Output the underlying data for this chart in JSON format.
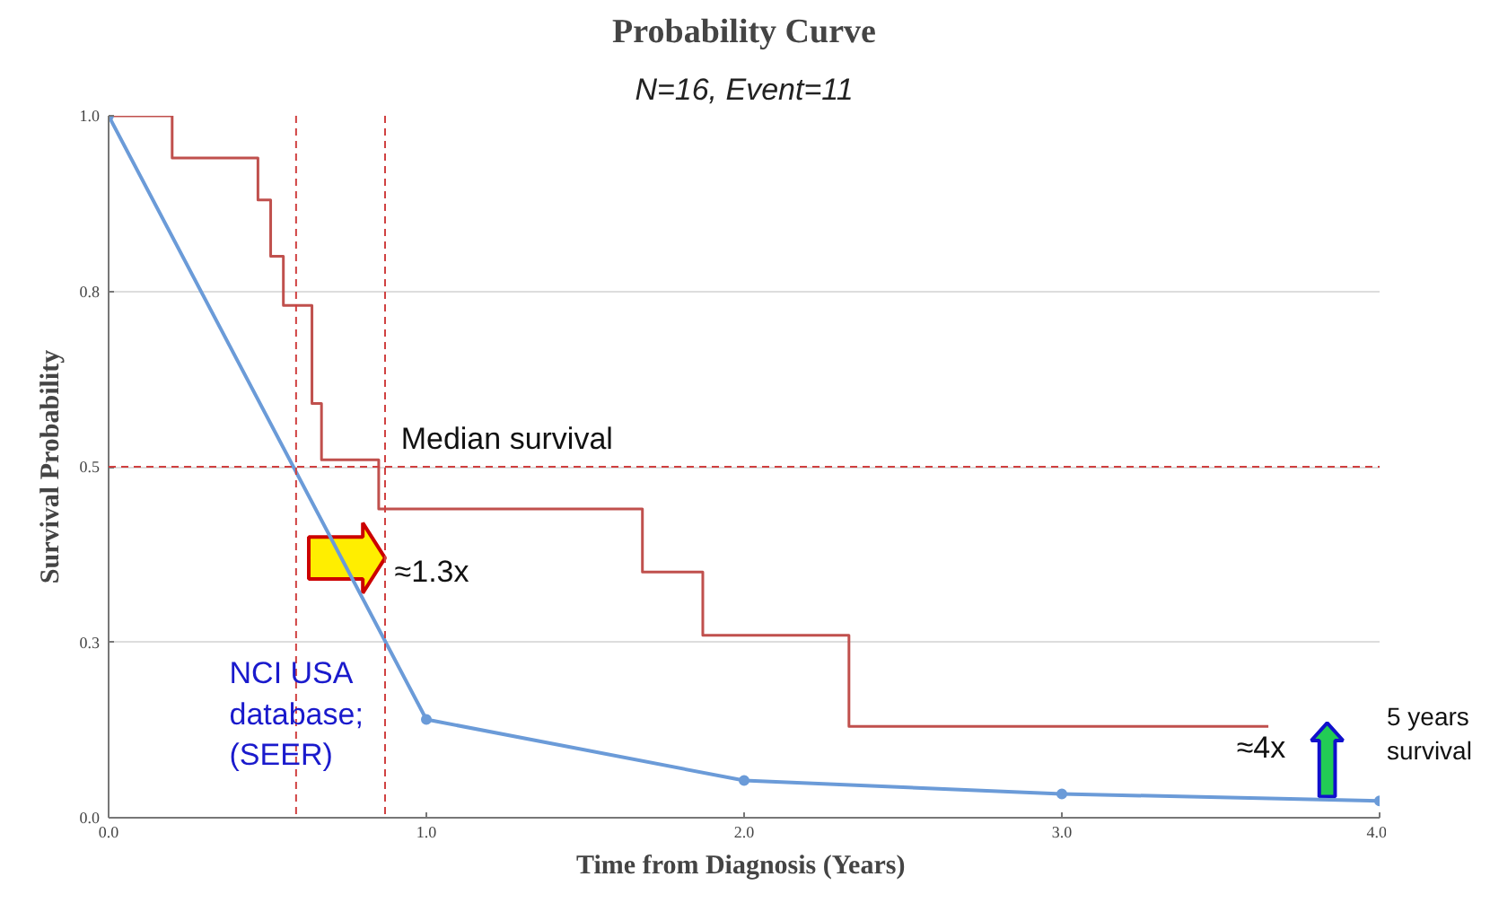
{
  "chart_data": {
    "type": "line",
    "title": "Probability Curve",
    "subtitle": "N=16, Event=11",
    "xlabel": "Time from Diagnosis  (Years)",
    "ylabel": "Survival Probability",
    "xlim": [
      0,
      4
    ],
    "xticks": [
      {
        "value": 0,
        "label": "0.0"
      },
      {
        "value": 1,
        "label": "1.0"
      },
      {
        "value": 2,
        "label": "2.0"
      },
      {
        "value": 3,
        "label": "3.0"
      },
      {
        "value": 4,
        "label": "4.0"
      }
    ],
    "ylim": [
      0,
      1
    ],
    "yticks": [
      {
        "value": 0,
        "label": "0.0"
      },
      {
        "value": 0.25,
        "label": "0.3"
      },
      {
        "value": 0.5,
        "label": "0.5"
      },
      {
        "value": 0.75,
        "label": "0.8"
      },
      {
        "value": 1,
        "label": "1.0"
      }
    ],
    "grid": "y",
    "series": [
      {
        "type": "step",
        "color": "#c0504d",
        "x": [
          0,
          0.2,
          0.47,
          0.51,
          0.55,
          0.64,
          0.67,
          0.85,
          1.68,
          1.87,
          2.33,
          3.65
        ],
        "values": [
          1,
          0.94,
          0.88,
          0.8,
          0.73,
          0.59,
          0.51,
          0.44,
          0.35,
          0.26,
          0.13,
          0.13
        ]
      },
      {
        "type": "line",
        "name": "NCI USA database; (SEER)",
        "color": "#6b9bd8",
        "marker": "circle",
        "x": [
          0,
          1,
          2,
          3,
          4
        ],
        "values": [
          1,
          0.14,
          0.053,
          0.034,
          0.024
        ]
      }
    ],
    "ref_lines": [
      {
        "axis": "y",
        "value": 0.5,
        "label": "Median survival",
        "color": "#d04040",
        "line_style": "dashed"
      },
      {
        "axis": "x",
        "value": 0.59,
        "color": "#d04040",
        "line_style": "dashed"
      },
      {
        "axis": "x",
        "value": 0.87,
        "color": "#d04040",
        "line_style": "dashed"
      }
    ],
    "annotations": [
      "≈1.3x",
      "≈4x",
      "5 years survival"
    ]
  }
}
